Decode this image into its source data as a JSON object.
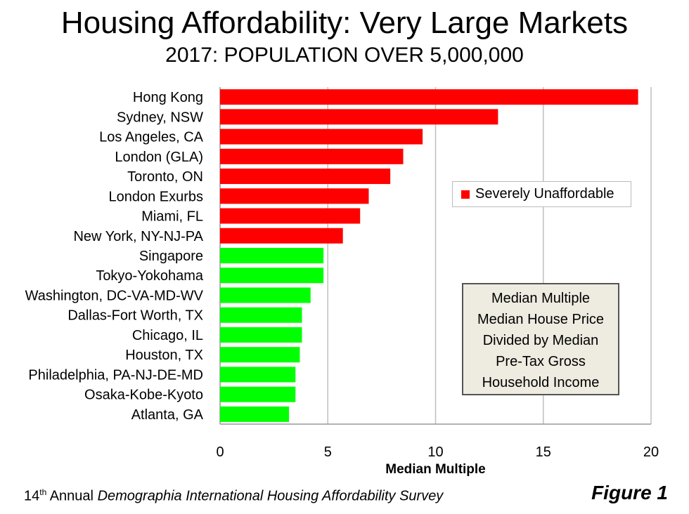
{
  "title": "Housing Affordability: Very Large Markets",
  "subtitle": "2017: POPULATION OVER 5,000,000",
  "footer": {
    "ordinal": "14",
    "ordinal_suffix": "th",
    "annual": " Annual ",
    "survey": "Demographia International Housing Affordability Survey"
  },
  "figure_label": "Figure 1",
  "legend": {
    "label": "Severely Unaffordable",
    "color": "#ff0000"
  },
  "note_lines": [
    "Median Multiple",
    "Median House Price",
    "Divided by Median",
    "Pre-Tax Gross",
    "Household Income"
  ],
  "chart_data": {
    "type": "bar",
    "orientation": "horizontal",
    "categories": [
      "Hong Kong",
      "Sydney, NSW",
      "Los Angeles, CA",
      "London (GLA)",
      "Toronto, ON",
      "London Exurbs",
      "Miami, FL",
      "New York, NY-NJ-PA",
      "Singapore",
      "Tokyo-Yokohama",
      "Washington, DC-VA-MD-WV",
      "Dallas-Fort Worth, TX",
      "Chicago, IL",
      "Houston, TX",
      "Philadelphia, PA-NJ-DE-MD",
      "Osaka-Kobe-Kyoto",
      "Atlanta, GA"
    ],
    "values": [
      19.4,
      12.9,
      9.4,
      8.5,
      7.9,
      6.9,
      6.5,
      5.7,
      4.8,
      4.8,
      4.2,
      3.8,
      3.8,
      3.7,
      3.5,
      3.5,
      3.2
    ],
    "colors": [
      "#ff0000",
      "#ff0000",
      "#ff0000",
      "#ff0000",
      "#ff0000",
      "#ff0000",
      "#ff0000",
      "#ff0000",
      "#00ff00",
      "#00ff00",
      "#00ff00",
      "#00ff00",
      "#00ff00",
      "#00ff00",
      "#00ff00",
      "#00ff00",
      "#00ff00"
    ],
    "xlabel": "Median Multiple",
    "xlim": [
      0,
      20
    ],
    "xticks": [
      "0",
      "5",
      "10",
      "15",
      "20"
    ],
    "grid": true,
    "legend_position": "right"
  }
}
